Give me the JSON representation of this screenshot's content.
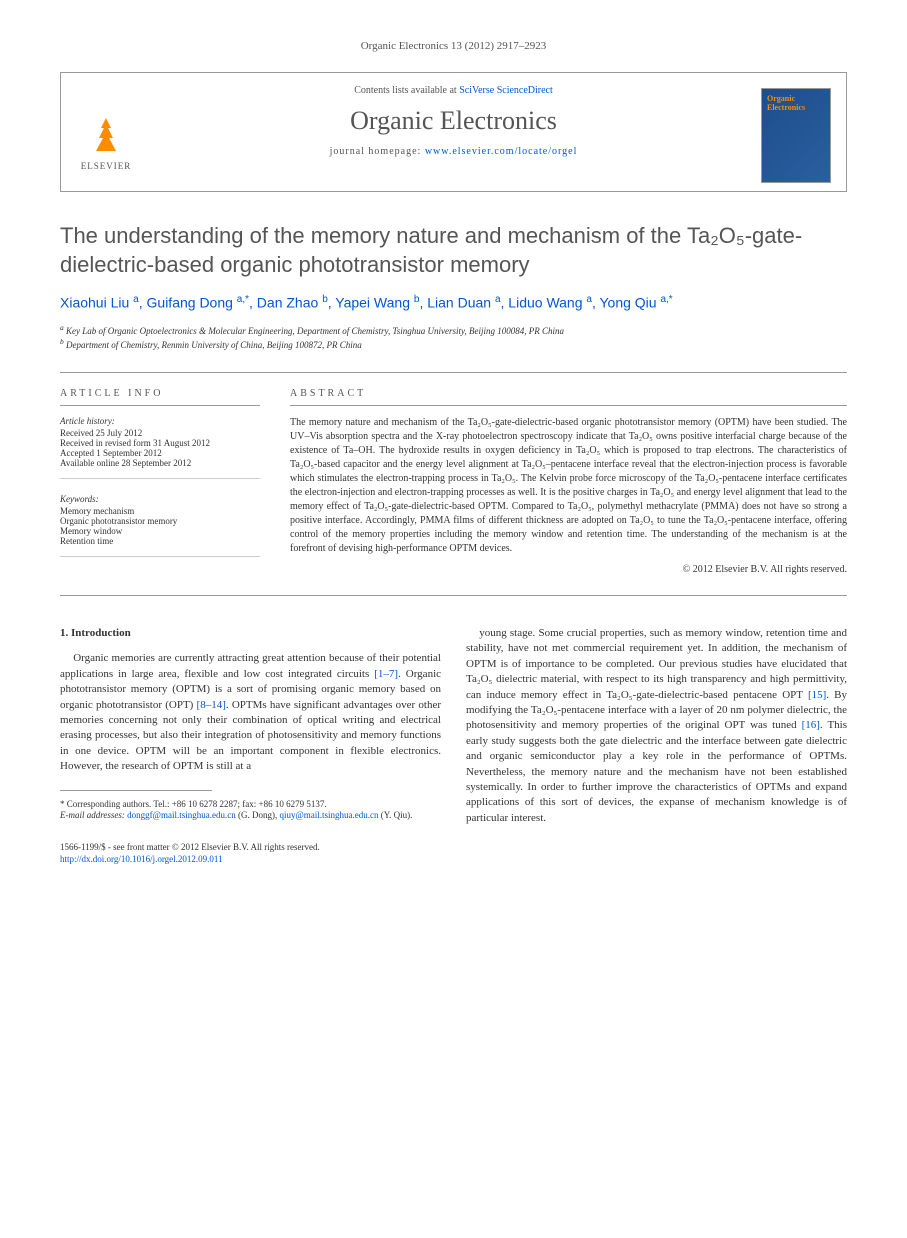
{
  "header": {
    "citation": "Organic Electronics 13 (2012) 2917–2923"
  },
  "journal_box": {
    "contents_text": "Contents lists available at ",
    "contents_link": "SciVerse ScienceDirect",
    "journal_name": "Organic Electronics",
    "homepage_label": "journal homepage: ",
    "homepage_url": "www.elsevier.com/locate/orgel",
    "publisher": "ELSEVIER",
    "cover_title": "Organic Electronics"
  },
  "title": "The understanding of the memory nature and mechanism of the Ta₂O₅-gate-dielectric-based organic phototransistor memory",
  "authors_html": "Xiaohui Liu <sup>a</sup>, Guifang Dong <sup>a,*</sup>, Dan Zhao <sup>b</sup>, Yapei Wang <sup>b</sup>, Lian Duan <sup>a</sup>, Liduo Wang <sup>a</sup>, Yong Qiu <sup>a,*</sup>",
  "affiliations": {
    "a": "Key Lab of Organic Optoelectronics & Molecular Engineering, Department of Chemistry, Tsinghua University, Beijing 100084, PR China",
    "b": "Department of Chemistry, Renmin University of China, Beijing 100872, PR China"
  },
  "article_info": {
    "heading": "ARTICLE INFO",
    "history_label": "Article history:",
    "history": [
      "Received 25 July 2012",
      "Received in revised form 31 August 2012",
      "Accepted 1 September 2012",
      "Available online 28 September 2012"
    ],
    "keywords_label": "Keywords:",
    "keywords": [
      "Memory mechanism",
      "Organic phototransistor memory",
      "Memory window",
      "Retention time"
    ]
  },
  "abstract": {
    "heading": "ABSTRACT",
    "text": "The memory nature and mechanism of the Ta₂O₅-gate-dielectric-based organic phototransistor memory (OPTM) have been studied. The UV–Vis absorption spectra and the X-ray photoelectron spectroscopy indicate that Ta₂O₅ owns positive interfacial charge because of the existence of Ta–OH. The hydroxide results in oxygen deficiency in Ta₂O₅ which is proposed to trap electrons. The characteristics of Ta₂O₅-based capacitor and the energy level alignment at Ta₂O₅–pentacene interface reveal that the electron-injection process is favorable which stimulates the electron-trapping process in Ta₂O₅. The Kelvin probe force microscopy of the Ta₂O₅-pentacene interface certificates the electron-injection and electron-trapping processes as well. It is the positive charges in Ta₂O₅ and energy level alignment that lead to the memory effect of Ta₂O₅-gate-dielectric-based OPTM. Compared to Ta₂O₅, polymethyl methacrylate (PMMA) does not have so strong a positive interface. Accordingly, PMMA films of different thickness are adopted on Ta₂O₅ to tune the Ta₂O₅-pentacene interface, offering control of the memory properties including the memory window and retention time. The understanding of the mechanism is at the forefront of devising high-performance OPTM devices.",
    "copyright": "© 2012 Elsevier B.V. All rights reserved."
  },
  "body": {
    "section_number": "1.",
    "section_title": "Introduction",
    "col1_p1": "Organic memories are currently attracting great attention because of their potential applications in large area, flexible and low cost integrated circuits [1–7]. Organic phototransistor memory (OPTM) is a sort of promising organic memory based on organic phototransistor (OPT) [8–14]. OPTMs have significant advantages over other memories concerning not only their combination of optical writing and electrical erasing processes, but also their integration of photosensitivity and memory functions in one device. OPTM will be an important component in flexible electronics. However, the research of OPTM is still at a",
    "col2_p1": "young stage. Some crucial properties, such as memory window, retention time and stability, have not met commercial requirement yet. In addition, the mechanism of OPTM is of importance to be completed. Our previous studies have elucidated that Ta₂O₅ dielectric material, with respect to its high transparency and high permittivity, can induce memory effect in Ta₂O₅-gate-dielectric-based pentacene OPT [15]. By modifying the Ta₂O₅-pentacene interface with a layer of 20 nm polymer dielectric, the photosensitivity and memory properties of the original OPT was tuned [16]. This early study suggests both the gate dielectric and the interface between gate dielectric and organic semiconductor play a key role in the performance of OPTMs. Nevertheless, the memory nature and the mechanism have not been established systemically. In order to further improve the characteristics of OPTMs and expand applications of this sort of devices, the expanse of mechanism knowledge is of particular interest.",
    "refs": {
      "r1": "[1–7]",
      "r2": "[8–14]",
      "r3": "[15]",
      "r4": "[16]"
    }
  },
  "footnotes": {
    "corresponding": "* Corresponding authors. Tel.: +86 10 6278 2287; fax: +86 10 6279 5137.",
    "email_label": "E-mail addresses:",
    "email1": "donggf@mail.tsinghua.edu.cn",
    "email1_name": "(G. Dong),",
    "email2": "qiuy@mail.tsinghua.edu.cn",
    "email2_name": "(Y. Qiu)."
  },
  "footer": {
    "issn": "1566-1199/$ - see front matter © 2012 Elsevier B.V. All rights reserved.",
    "doi": "http://dx.doi.org/10.1016/j.orgel.2012.09.011"
  },
  "colors": {
    "link": "#0056d6",
    "text": "#333333",
    "muted": "#555555",
    "border": "#999999",
    "elsevier_orange": "#ff8c00",
    "cover_blue": "#1e4d8b"
  },
  "typography": {
    "title_fontsize": 22,
    "journal_name_fontsize": 26,
    "body_fontsize": 11,
    "abstract_fontsize": 10,
    "footnote_fontsize": 9
  }
}
